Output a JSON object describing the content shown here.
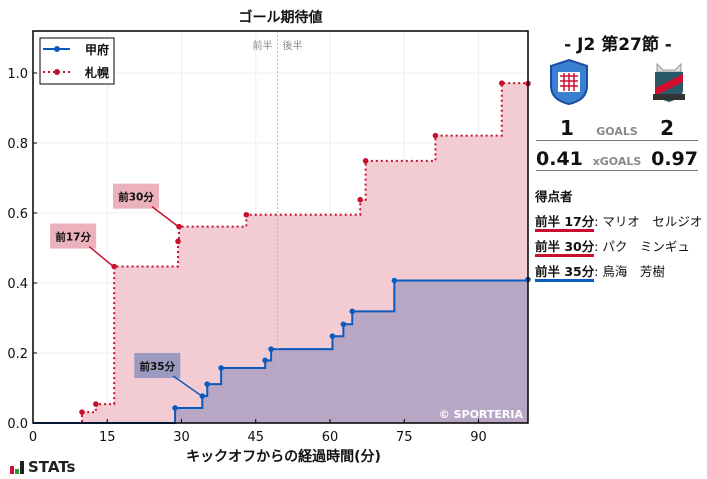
{
  "chart_data": {
    "type": "line",
    "step": true,
    "title": "ゴール期待値",
    "xlabel": "キックオフからの経過時間(分)",
    "ylabel": "",
    "xlim": [
      0,
      100
    ],
    "ylim": [
      0,
      1.12
    ],
    "xticks": [
      0,
      15,
      30,
      45,
      60,
      75,
      90
    ],
    "yticks": [
      0.0,
      0.2,
      0.4,
      0.6,
      0.8,
      1.0
    ],
    "grid": true,
    "legend": "top-left",
    "half_time_minute": 49.4,
    "half_labels": [
      "前半",
      "後半"
    ],
    "watermark": "© SPORTERIA",
    "series": [
      {
        "name": "甲府",
        "color": "#0a5bbd",
        "fill": "#a49ac0",
        "style": "solid",
        "points": [
          [
            28.7,
            0.043
          ],
          [
            34.2,
            0.077
          ],
          [
            35.2,
            0.111
          ],
          [
            38.0,
            0.157
          ],
          [
            46.9,
            0.179
          ],
          [
            48.1,
            0.211
          ],
          [
            60.5,
            0.248
          ],
          [
            62.7,
            0.282
          ],
          [
            64.5,
            0.319
          ],
          [
            73.0,
            0.407
          ],
          [
            100,
            0.41
          ]
        ]
      },
      {
        "name": "札幌",
        "color": "#c8102e",
        "fill": "#f3cbd3",
        "style": "dotted",
        "points": [
          [
            9.9,
            0.031
          ],
          [
            12.7,
            0.054
          ],
          [
            16.4,
            0.447
          ],
          [
            29.3,
            0.519
          ],
          [
            29.5,
            0.561
          ],
          [
            43.1,
            0.595
          ],
          [
            66.1,
            0.638
          ],
          [
            67.2,
            0.749
          ],
          [
            81.3,
            0.821
          ],
          [
            94.7,
            0.971
          ],
          [
            100,
            0.97
          ]
        ]
      }
    ],
    "annotations": [
      {
        "text": "前17分",
        "series": 1,
        "x": 16.4,
        "y": 0.447,
        "bg": "#ebb1bc"
      },
      {
        "text": "前30分",
        "series": 1,
        "x": 29.5,
        "y": 0.561,
        "bg": "#ebb1bc"
      },
      {
        "text": "前35分",
        "series": 0,
        "x": 34.2,
        "y": 0.077,
        "bg": "#9c9ac0"
      }
    ]
  },
  "match": {
    "title": "-  J2 第27節  -",
    "home_goals": "1",
    "away_goals": "2",
    "goals_label": "GOALS",
    "home_xg": "0.41",
    "away_xg": "0.97",
    "xg_label": "xGOALS",
    "scorers_title": "得点者",
    "scorers": [
      {
        "time": "前半 17分",
        "name": ": マリオ　セルジオ",
        "color": "#c8102e"
      },
      {
        "time": "前半 30分",
        "name": ": パク　ミンギュ",
        "color": "#c8102e"
      },
      {
        "time": "前半 35分",
        "name": ": 鳥海　芳樹",
        "color": "#0a5bbd"
      }
    ]
  },
  "brand": "STATs"
}
